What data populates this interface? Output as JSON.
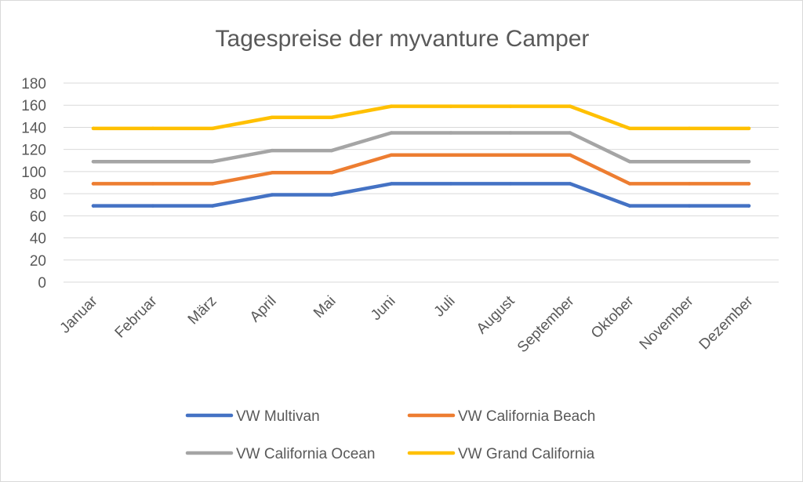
{
  "chart_data": {
    "type": "line",
    "title": "Tagespreise der myvanture Camper",
    "xlabel": "",
    "ylabel": "",
    "categories": [
      "Januar",
      "Februar",
      "März",
      "April",
      "Mai",
      "Juni",
      "Juli",
      "August",
      "September",
      "Oktober",
      "November",
      "Dezember"
    ],
    "ylim": [
      0,
      180
    ],
    "yticks": [
      0,
      20,
      40,
      60,
      80,
      100,
      120,
      140,
      160,
      180
    ],
    "grid": true,
    "legend_position": "bottom",
    "series": [
      {
        "name": "VW Multivan",
        "color": "#4472c4",
        "values": [
          69,
          69,
          69,
          79,
          79,
          89,
          89,
          89,
          89,
          69,
          69,
          69
        ]
      },
      {
        "name": "VW California Beach",
        "color": "#ed7d31",
        "values": [
          89,
          89,
          89,
          99,
          99,
          115,
          115,
          115,
          115,
          89,
          89,
          89
        ]
      },
      {
        "name": "VW California Ocean",
        "color": "#a5a5a5",
        "values": [
          109,
          109,
          109,
          119,
          119,
          135,
          135,
          135,
          135,
          109,
          109,
          109
        ]
      },
      {
        "name": "VW Grand California",
        "color": "#ffc000",
        "values": [
          139,
          139,
          139,
          149,
          149,
          159,
          159,
          159,
          159,
          139,
          139,
          139
        ]
      }
    ]
  }
}
